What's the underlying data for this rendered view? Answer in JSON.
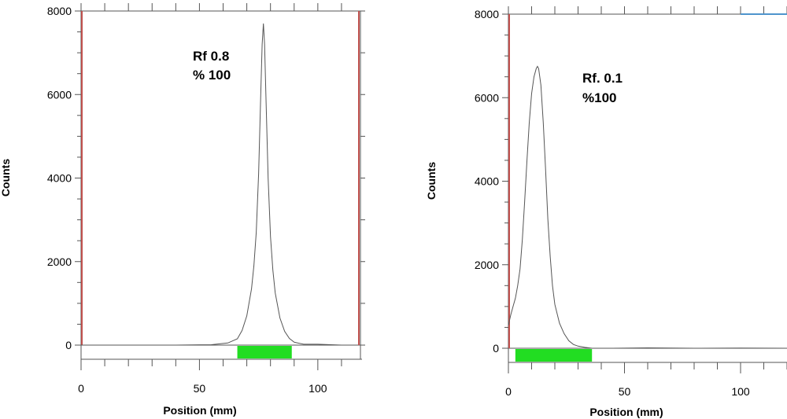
{
  "colors": {
    "axis": "#555555",
    "trace": "#555555",
    "region_marker": "#c0504d",
    "integration_band": "#22dd22",
    "top_right_line": "#4f94cd"
  },
  "chart_data": [
    {
      "type": "line",
      "xlabel": "Position (mm)",
      "ylabel": "Counts",
      "xlim": [
        0,
        118
      ],
      "ylim": [
        0,
        8000
      ],
      "x_ticks": [
        "0",
        "50",
        "100"
      ],
      "y_ticks": [
        "0",
        "2000",
        "4000",
        "6000",
        "8000"
      ],
      "annotation": [
        "Rf 0.8",
        "% 100"
      ],
      "region_markers_x": [
        0,
        117
      ],
      "integration_band_x": [
        66,
        89
      ],
      "peak": {
        "center": 77,
        "height": 7700,
        "width": 4
      },
      "series": [
        {
          "x": [
            0,
            20,
            40,
            55,
            62,
            66,
            68,
            70,
            72,
            73,
            74,
            75,
            76,
            76.5,
            77,
            77.5,
            78,
            79,
            80,
            81,
            82,
            84,
            86,
            88,
            90,
            94,
            100,
            110
          ],
          "y": [
            0,
            0,
            0,
            10,
            50,
            150,
            350,
            700,
            1350,
            1900,
            2700,
            4100,
            6200,
            7200,
            7700,
            7200,
            6100,
            4000,
            2600,
            1800,
            1250,
            650,
            330,
            160,
            70,
            20,
            20,
            0
          ]
        }
      ]
    },
    {
      "type": "line",
      "xlabel": "Position (mm)",
      "ylabel": "Counts",
      "xlim": [
        0,
        120
      ],
      "ylim": [
        0,
        8000
      ],
      "x_ticks": [
        "0",
        "50",
        "100"
      ],
      "y_ticks": [
        "0",
        "2000",
        "4000",
        "6000",
        "8000"
      ],
      "annotation": [
        "Rf. 0.1",
        "%100"
      ],
      "region_markers_x": [
        0
      ],
      "integration_band_x": [
        3,
        36
      ],
      "top_right_line_x": [
        100,
        120
      ],
      "series": [
        {
          "x": [
            0,
            1,
            2,
            3,
            4,
            5,
            6,
            7,
            8,
            9,
            10,
            11,
            12,
            12.5,
            13,
            14,
            15,
            16,
            17,
            18,
            19,
            20,
            22,
            24,
            26,
            28,
            30,
            33,
            36,
            45,
            60,
            80,
            100,
            120
          ],
          "y": [
            550,
            800,
            1000,
            1200,
            1500,
            1900,
            2600,
            3500,
            4500,
            5400,
            6100,
            6500,
            6700,
            6750,
            6700,
            6300,
            5400,
            4300,
            3100,
            2200,
            1500,
            1050,
            600,
            350,
            180,
            90,
            50,
            20,
            0,
            0,
            10,
            0,
            5,
            0
          ]
        }
      ]
    }
  ]
}
